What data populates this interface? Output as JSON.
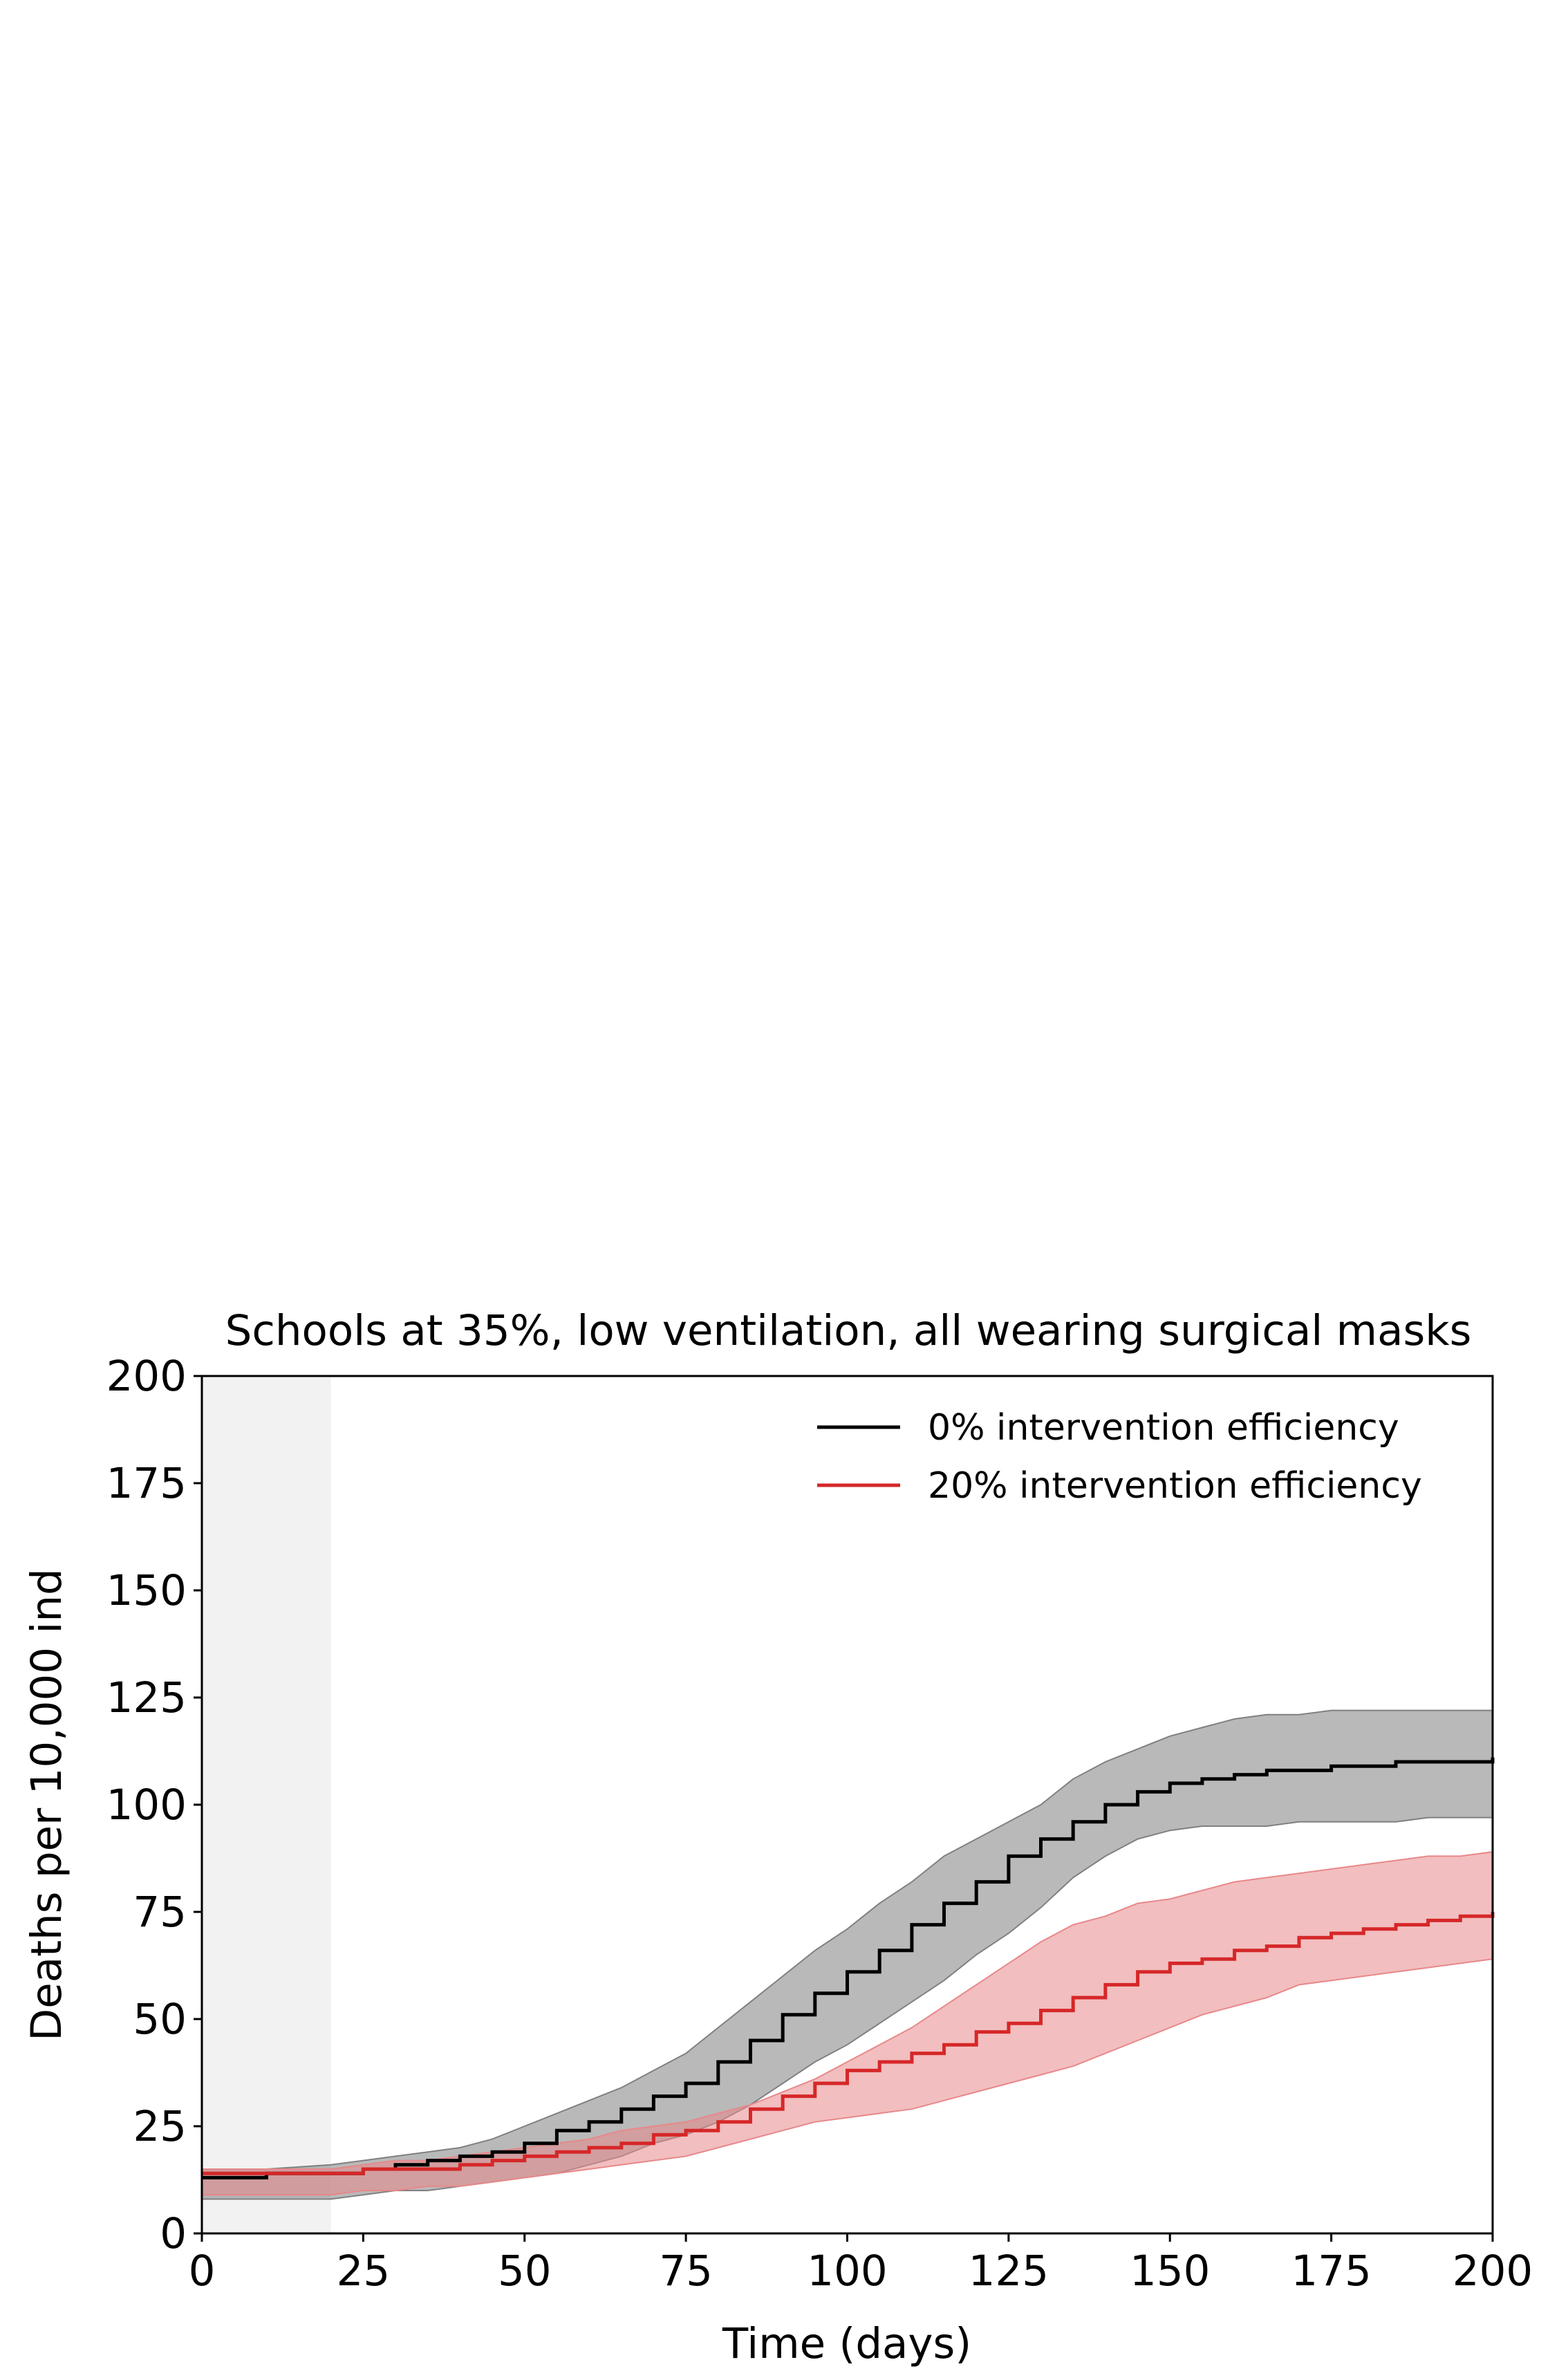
{
  "chart_data": {
    "type": "line",
    "title": "Schools at 35%, low ventilation, all wearing surgical masks",
    "xlabel": "Time (days)",
    "ylabel": "Deaths per 10,000 ind",
    "xlim": [
      0,
      200
    ],
    "ylim": [
      0,
      200
    ],
    "xticks": [
      0,
      25,
      50,
      75,
      100,
      125,
      150,
      175,
      200
    ],
    "yticks": [
      0,
      25,
      50,
      75,
      100,
      125,
      150,
      175,
      200
    ],
    "grid": false,
    "legend_position": "top-right",
    "shaded_period": {
      "x_start": 0,
      "x_end": 20,
      "color": "#d9d9d9"
    },
    "x": [
      0,
      10,
      20,
      25,
      30,
      35,
      40,
      45,
      50,
      55,
      60,
      65,
      70,
      75,
      80,
      85,
      90,
      95,
      100,
      105,
      110,
      115,
      120,
      125,
      130,
      135,
      140,
      145,
      150,
      155,
      160,
      165,
      170,
      175,
      180,
      185,
      190,
      195,
      200
    ],
    "series": [
      {
        "name": "0% intervention efficiency",
        "color": "#000000",
        "band_color": "#808080",
        "values": [
          13,
          14,
          14,
          15,
          16,
          17,
          18,
          19,
          21,
          24,
          26,
          29,
          32,
          35,
          40,
          45,
          51,
          56,
          61,
          66,
          72,
          77,
          82,
          88,
          92,
          96,
          100,
          103,
          105,
          106,
          107,
          108,
          108,
          109,
          109,
          110,
          110,
          110,
          111
        ],
        "lower": [
          8,
          8,
          8,
          9,
          10,
          10,
          11,
          12,
          13,
          14,
          16,
          18,
          21,
          23,
          26,
          30,
          35,
          40,
          44,
          49,
          54,
          59,
          65,
          70,
          76,
          83,
          88,
          92,
          94,
          95,
          95,
          95,
          96,
          96,
          96,
          96,
          97,
          97,
          97
        ],
        "upper": [
          15,
          15,
          16,
          17,
          18,
          19,
          20,
          22,
          25,
          28,
          31,
          34,
          38,
          42,
          48,
          54,
          60,
          66,
          71,
          77,
          82,
          88,
          92,
          96,
          100,
          106,
          110,
          113,
          116,
          118,
          120,
          121,
          121,
          122,
          122,
          122,
          122,
          122,
          122
        ]
      },
      {
        "name": "20% intervention efficiency",
        "color": "#d62728",
        "band_color": "#e8888a",
        "values": [
          14,
          14,
          14,
          15,
          15,
          15,
          16,
          17,
          18,
          19,
          20,
          21,
          23,
          24,
          26,
          29,
          32,
          35,
          38,
          40,
          42,
          44,
          47,
          49,
          52,
          55,
          58,
          61,
          63,
          64,
          66,
          67,
          69,
          70,
          71,
          72,
          73,
          74,
          75
        ],
        "lower": [
          9,
          9,
          9,
          10,
          10,
          11,
          11,
          12,
          13,
          14,
          15,
          16,
          17,
          18,
          20,
          22,
          24,
          26,
          27,
          28,
          29,
          31,
          33,
          35,
          37,
          39,
          42,
          45,
          48,
          51,
          53,
          55,
          58,
          59,
          60,
          61,
          62,
          63,
          64
        ],
        "upper": [
          15,
          15,
          15,
          16,
          17,
          17,
          18,
          19,
          20,
          21,
          22,
          24,
          25,
          26,
          28,
          30,
          33,
          36,
          40,
          44,
          48,
          53,
          58,
          63,
          68,
          72,
          74,
          77,
          78,
          80,
          82,
          83,
          84,
          85,
          86,
          87,
          88,
          88,
          89
        ]
      }
    ]
  }
}
